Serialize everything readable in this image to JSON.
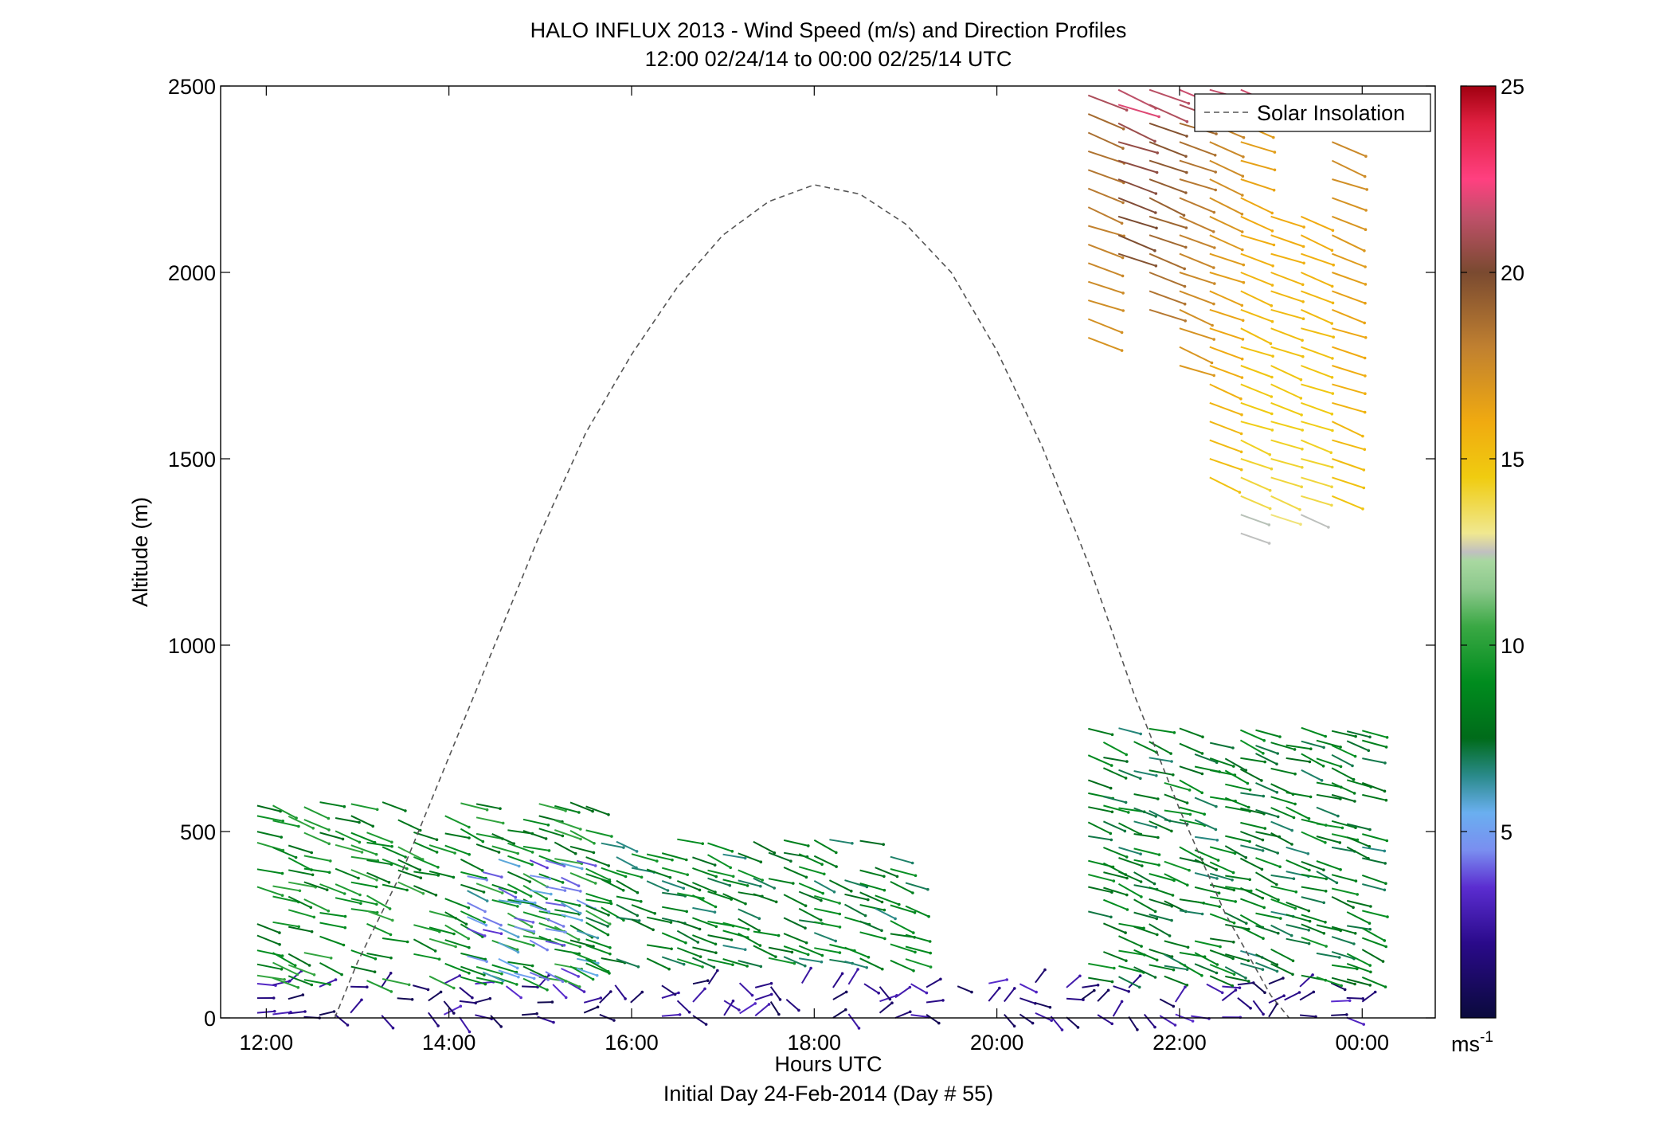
{
  "chart_data": {
    "type": "scatter",
    "title": "HALO INFLUX 2013 - Wind Speed (m/s) and Direction Profiles",
    "subtitle": "12:00 02/24/14 to 00:00 02/25/14  UTC",
    "xlabel": "Hours UTC",
    "xlabel2": "Initial Day 24-Feb-2014 (Day # 55)",
    "ylabel": "Altitude (m)",
    "xlim": [
      11.5,
      24.8
    ],
    "ylim": [
      0,
      2500
    ],
    "x_ticks": [
      12,
      14,
      16,
      18,
      20,
      22,
      24
    ],
    "x_tick_labels": [
      "12:00",
      "14:00",
      "16:00",
      "18:00",
      "20:00",
      "22:00",
      "00:00"
    ],
    "y_ticks": [
      0,
      500,
      1000,
      1500,
      2000,
      2500
    ],
    "y_tick_labels": [
      "0",
      "500",
      "1000",
      "1500",
      "2000",
      "2500"
    ],
    "colorbar": {
      "range": [
        0,
        25
      ],
      "ticks": [
        5,
        10,
        15,
        20,
        25
      ],
      "tick_labels": [
        "5",
        "10",
        "15",
        "20",
        "25"
      ],
      "unit_label": "ms",
      "unit_exp": "-1"
    },
    "legend": {
      "entries": [
        "Solar Insolation"
      ],
      "placement": "top-right"
    },
    "solar_insolation": {
      "style": "dashed",
      "color": "#555555",
      "points": [
        [
          12.75,
          0
        ],
        [
          13.0,
          150
        ],
        [
          13.5,
          400
        ],
        [
          14.0,
          700
        ],
        [
          14.5,
          1000
        ],
        [
          15.0,
          1300
        ],
        [
          15.5,
          1570
        ],
        [
          16.0,
          1780
        ],
        [
          16.5,
          1960
        ],
        [
          17.0,
          2100
        ],
        [
          17.5,
          2190
        ],
        [
          18.0,
          2235
        ],
        [
          18.5,
          2210
        ],
        [
          19.0,
          2130
        ],
        [
          19.5,
          2000
        ],
        [
          20.0,
          1790
        ],
        [
          20.5,
          1530
        ],
        [
          21.0,
          1220
        ],
        [
          21.5,
          870
        ],
        [
          22.0,
          560
        ],
        [
          22.5,
          280
        ],
        [
          23.0,
          60
        ],
        [
          23.2,
          0
        ]
      ]
    },
    "wind_barbs_upper": [
      {
        "x": 21.0,
        "alts": [
          1825,
          1875,
          1925,
          1975,
          2025,
          2075,
          2125,
          2175,
          2225,
          2275,
          2325,
          2375,
          2425,
          2475
        ],
        "speed": 17
      },
      {
        "x": 21.33,
        "alts": [
          2050,
          2100,
          2150,
          2200,
          2250,
          2300,
          2350,
          2400,
          2450,
          2490
        ],
        "speed": 19
      },
      {
        "x": 21.67,
        "alts": [
          1900,
          1950,
          2000,
          2050,
          2100,
          2150,
          2200,
          2250,
          2300,
          2350,
          2400,
          2450,
          2490
        ],
        "speed": 18
      },
      {
        "x": 22.0,
        "alts": [
          1750,
          1800,
          1850,
          1900,
          1950,
          2000,
          2050,
          2100,
          2150,
          2200,
          2250,
          2300,
          2350,
          2400,
          2450,
          2490
        ],
        "speed": 17
      },
      {
        "x": 22.33,
        "alts": [
          1450,
          1500,
          1550,
          1600,
          1650,
          1700,
          1750,
          1800,
          1850,
          1900,
          1950,
          2000,
          2050,
          2100,
          2150,
          2200,
          2250,
          2300,
          2350,
          2400,
          2490
        ],
        "speed": 16
      },
      {
        "x": 22.67,
        "alts": [
          1300,
          1350,
          1400,
          1450,
          1500,
          1550,
          1600,
          1650,
          1700,
          1750,
          1800,
          1850,
          1900,
          1950,
          2000,
          2050,
          2100,
          2150,
          2200,
          2250,
          2300,
          2350,
          2400,
          2490
        ],
        "speed": 15
      },
      {
        "x": 23.0,
        "alts": [
          1350,
          1400,
          1450,
          1500,
          1550,
          1600,
          1650,
          1700,
          1750,
          1800,
          1850,
          1900,
          1950,
          2000,
          2050,
          2100,
          2150
        ],
        "speed": 15
      },
      {
        "x": 23.33,
        "alts": [
          1350,
          1400,
          1450,
          1500,
          1550,
          1600,
          1650,
          1700,
          1750,
          1800,
          1850,
          1900,
          1950,
          2000,
          2050,
          2100,
          2150
        ],
        "speed": 15
      },
      {
        "x": 23.67,
        "alts": [
          1400,
          1450,
          1500,
          1550,
          1600,
          1650,
          1700,
          1750,
          1800,
          1850,
          1900,
          1950,
          2000,
          2050,
          2100,
          2150,
          2200,
          2250,
          2300,
          2350
        ],
        "speed": 16
      }
    ],
    "wind_barbs_lower": [
      {
        "x_range": [
          11.9,
          24.0
        ],
        "alt_range": [
          0,
          120
        ],
        "speed": 2
      },
      {
        "x_range": [
          11.9,
          15.5
        ],
        "alt_range": [
          100,
          600
        ],
        "speed": 9
      },
      {
        "x_range": [
          14.2,
          15.4
        ],
        "alt_range": [
          120,
          450
        ],
        "speed": 5
      },
      {
        "x_range": [
          15.5,
          19.0
        ],
        "alt_range": [
          150,
          500
        ],
        "speed": 8
      },
      {
        "x_range": [
          21.0,
          24.0
        ],
        "alt_range": [
          100,
          800
        ],
        "speed": 8
      }
    ]
  }
}
